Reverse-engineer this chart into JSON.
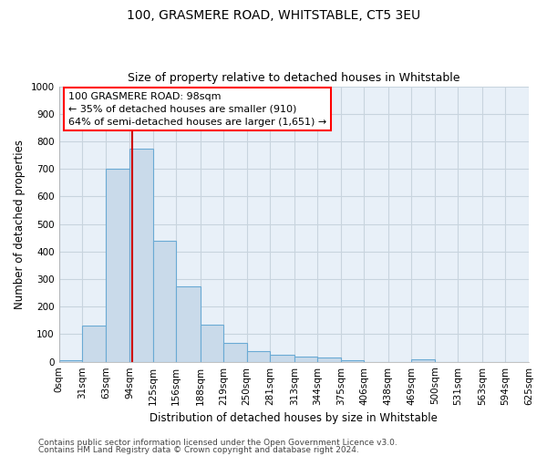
{
  "title": "100, GRASMERE ROAD, WHITSTABLE, CT5 3EU",
  "subtitle": "Size of property relative to detached houses in Whitstable",
  "xlabel": "Distribution of detached houses by size in Whitstable",
  "ylabel": "Number of detached properties",
  "footer_line1": "Contains HM Land Registry data © Crown copyright and database right 2024.",
  "footer_line2": "Contains public sector information licensed under the Open Government Licence v3.0.",
  "bin_edges": [
    0,
    31,
    63,
    94,
    125,
    156,
    188,
    219,
    250,
    281,
    313,
    344,
    375,
    406,
    438,
    469,
    500,
    531,
    563,
    594,
    625
  ],
  "bin_labels": [
    "0sqm",
    "31sqm",
    "63sqm",
    "94sqm",
    "125sqm",
    "156sqm",
    "188sqm",
    "219sqm",
    "250sqm",
    "281sqm",
    "313sqm",
    "344sqm",
    "375sqm",
    "406sqm",
    "438sqm",
    "469sqm",
    "500sqm",
    "531sqm",
    "563sqm",
    "594sqm",
    "625sqm"
  ],
  "counts": [
    5,
    130,
    700,
    775,
    440,
    275,
    135,
    70,
    40,
    25,
    20,
    15,
    5,
    0,
    0,
    10,
    0,
    0,
    0,
    0
  ],
  "bar_facecolor": "#c9daea",
  "bar_edgecolor": "#6aaad4",
  "vline_x": 98,
  "vline_color": "#cc0000",
  "annotation_box_text": "100 GRASMERE ROAD: 98sqm\n← 35% of detached houses are smaller (910)\n64% of semi-detached houses are larger (1,651) →",
  "ylim": [
    0,
    1000
  ],
  "yticks": [
    0,
    100,
    200,
    300,
    400,
    500,
    600,
    700,
    800,
    900,
    1000
  ],
  "bg_color": "#ffffff",
  "grid_color": "#c8d4de",
  "title_fontsize": 10,
  "subtitle_fontsize": 9,
  "axis_label_fontsize": 8.5,
  "tick_fontsize": 7.5,
  "annotation_fontsize": 8,
  "footer_fontsize": 6.5
}
